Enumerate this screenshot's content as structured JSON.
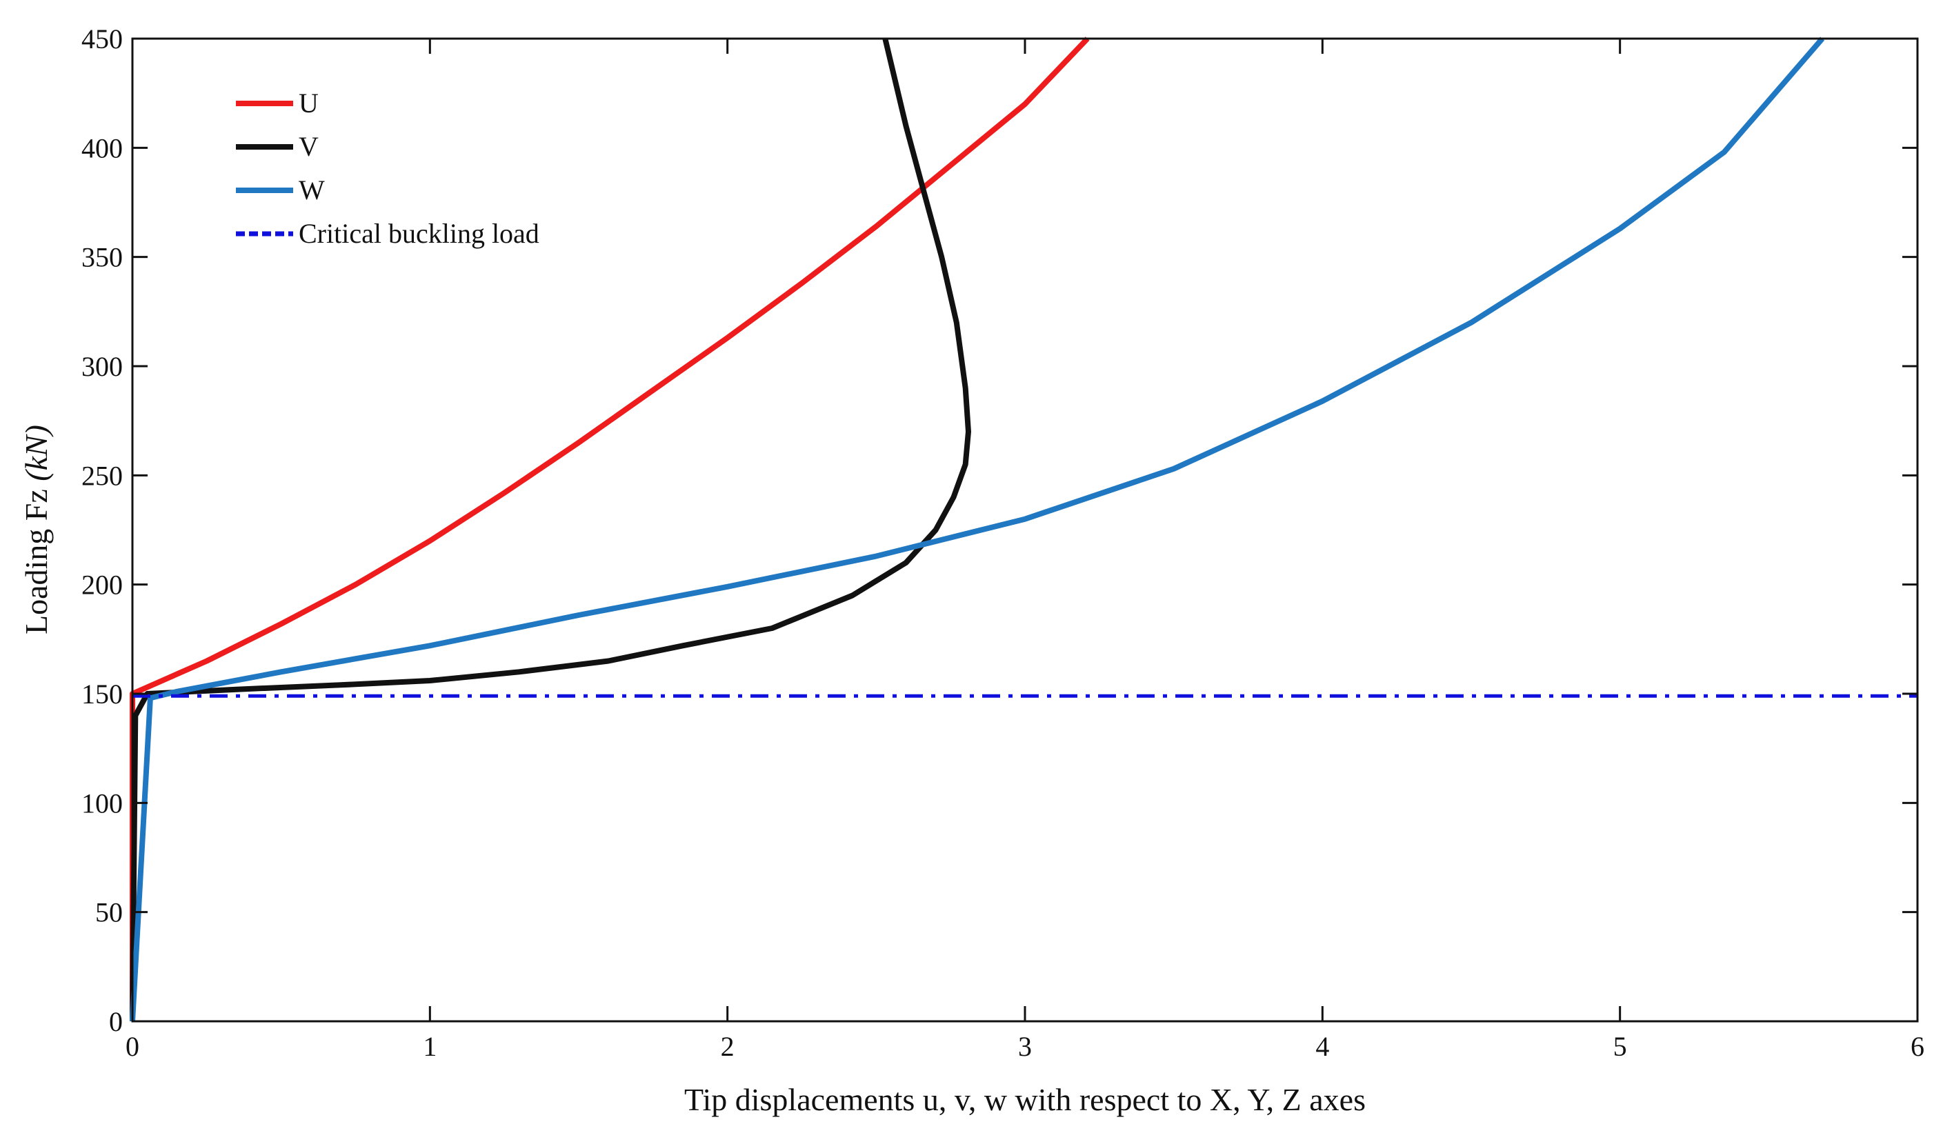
{
  "chart_data": {
    "type": "line",
    "title": "",
    "xlabel": "Tip displacements u, v, w with respect  to X, Y, Z axes",
    "ylabel_prefix": "Loading Fz ",
    "ylabel_unit": "(kN)",
    "xlim": [
      0,
      6
    ],
    "ylim": [
      0,
      450
    ],
    "xticks": [
      0,
      1,
      2,
      3,
      4,
      5,
      6
    ],
    "yticks": [
      0,
      50,
      100,
      150,
      200,
      250,
      300,
      350,
      400,
      450
    ],
    "grid": false,
    "legend_position": "top-left",
    "series": [
      {
        "name": "U",
        "color": "#ee1c1c",
        "style": "solid",
        "points": [
          [
            0,
            0
          ],
          [
            0,
            150
          ],
          [
            0.25,
            165
          ],
          [
            0.5,
            182
          ],
          [
            0.75,
            200
          ],
          [
            1.0,
            220
          ],
          [
            1.25,
            242
          ],
          [
            1.5,
            265
          ],
          [
            1.75,
            289
          ],
          [
            2.0,
            313
          ],
          [
            2.25,
            338
          ],
          [
            2.5,
            364
          ],
          [
            2.75,
            392
          ],
          [
            3.0,
            420
          ],
          [
            3.21,
            450
          ]
        ]
      },
      {
        "name": "V",
        "color": "#111111",
        "style": "solid",
        "points": [
          [
            0,
            0
          ],
          [
            0.01,
            140
          ],
          [
            0.05,
            150
          ],
          [
            0.35,
            152
          ],
          [
            0.7,
            154
          ],
          [
            1.0,
            156
          ],
          [
            1.3,
            160
          ],
          [
            1.6,
            165
          ],
          [
            1.85,
            172
          ],
          [
            2.15,
            180
          ],
          [
            2.42,
            195
          ],
          [
            2.6,
            210
          ],
          [
            2.7,
            225
          ],
          [
            2.76,
            240
          ],
          [
            2.8,
            255
          ],
          [
            2.81,
            270
          ],
          [
            2.8,
            290
          ],
          [
            2.77,
            320
          ],
          [
            2.72,
            350
          ],
          [
            2.66,
            380
          ],
          [
            2.6,
            410
          ],
          [
            2.53,
            450
          ]
        ]
      },
      {
        "name": "W",
        "color": "#1f78c1",
        "style": "solid",
        "points": [
          [
            0,
            0
          ],
          [
            0.06,
            148
          ],
          [
            0.15,
            151
          ],
          [
            0.5,
            160
          ],
          [
            1.0,
            172
          ],
          [
            1.5,
            186
          ],
          [
            2.0,
            199
          ],
          [
            2.5,
            213
          ],
          [
            3.0,
            230
          ],
          [
            3.5,
            253
          ],
          [
            4.0,
            284
          ],
          [
            4.5,
            320
          ],
          [
            5.0,
            363
          ],
          [
            5.35,
            398
          ],
          [
            5.68,
            450
          ]
        ]
      },
      {
        "name": "Critical buckling load",
        "color": "#1010dd",
        "style": "dashdot",
        "points": [
          [
            0,
            149
          ],
          [
            6,
            149
          ]
        ]
      }
    ]
  }
}
